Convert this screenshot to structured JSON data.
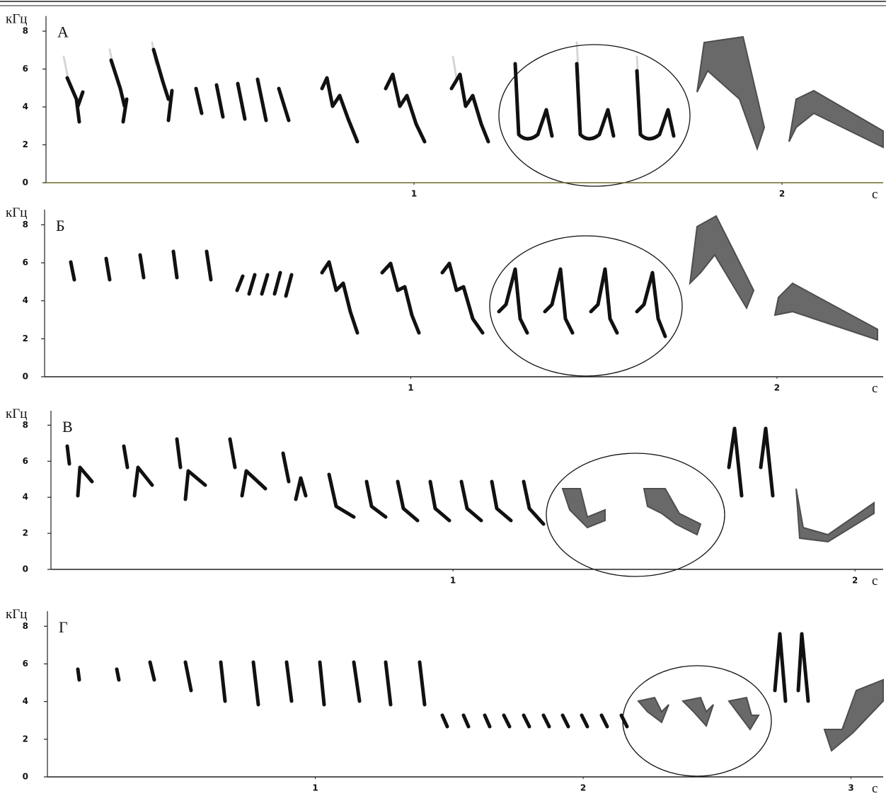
{
  "chart_data": [
    {
      "type": "spectrogram",
      "title": "А",
      "y_label": "кГц",
      "x_label": "с",
      "xlim": [
        0,
        2.275
      ],
      "xticks": [
        1,
        2
      ],
      "ylim": [
        0,
        8.8
      ],
      "yticks": [
        0,
        2,
        4,
        6,
        8
      ]
    },
    {
      "type": "spectrogram",
      "title": "Б",
      "y_label": "кГц",
      "x_label": "с",
      "xlim": [
        0,
        2.29
      ],
      "xticks": [
        1,
        2
      ],
      "ylim": [
        0,
        8.8
      ],
      "yticks": [
        0,
        2,
        4,
        6,
        8
      ]
    },
    {
      "type": "spectrogram",
      "title": "В",
      "y_label": "кГц",
      "x_label": "с",
      "xlim": [
        0,
        2.07
      ],
      "xticks": [
        1,
        2
      ],
      "ylim": [
        0,
        8.8
      ],
      "yticks": [
        0,
        2,
        4,
        6,
        8
      ]
    },
    {
      "type": "spectrogram",
      "title": "Г",
      "y_label": "кГц",
      "x_label": "с",
      "xlim": [
        0,
        3.12
      ],
      "xticks": [
        1,
        2,
        3
      ],
      "ylim": [
        0,
        8.8
      ],
      "yticks": [
        0,
        2,
        4,
        6,
        8
      ]
    }
  ]
}
